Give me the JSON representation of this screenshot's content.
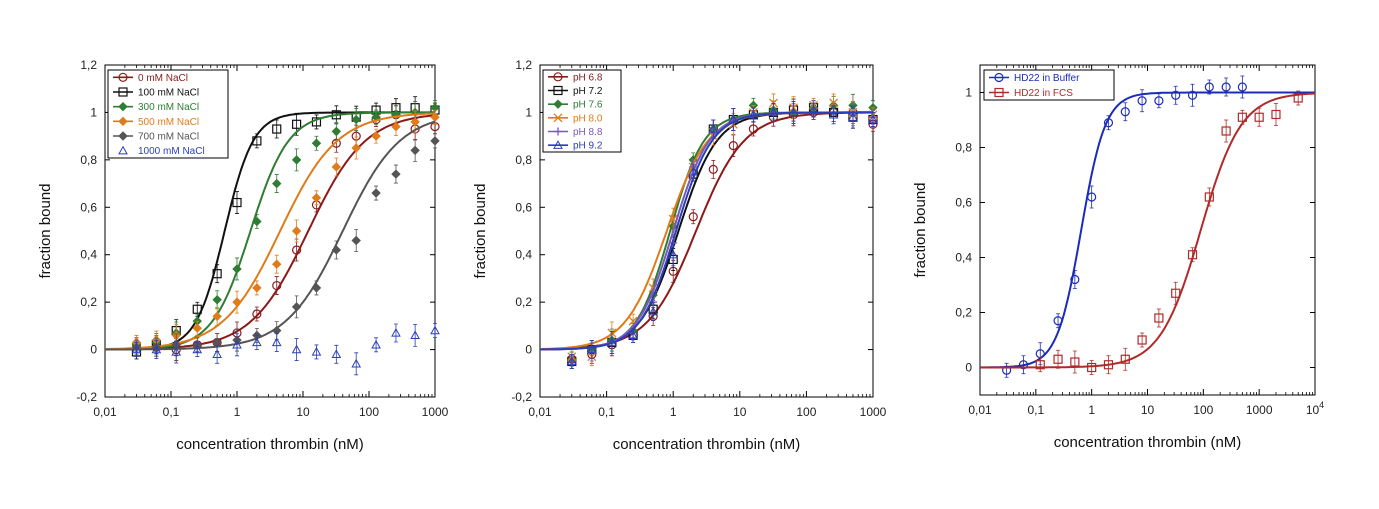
{
  "chart_data": [
    {
      "type": "scatter",
      "xlabel": "concentration thrombin (nM)",
      "ylabel": "fraction bound",
      "x_scale": "log",
      "xlim": [
        0.01,
        1000
      ],
      "ylim": [
        -0.2,
        1.2
      ],
      "x_ticks": [
        "0,01",
        "0,1",
        "1",
        "10",
        "100",
        "1000"
      ],
      "y_ticks": [
        "-0,2",
        "0",
        "0,2",
        "0,4",
        "0,6",
        "0,8",
        "1",
        "1,2"
      ],
      "legend_position": "top-left",
      "series": [
        {
          "name": "0 mM NaCl",
          "color": "#8b1a1a",
          "marker": "circle",
          "kd": 12,
          "n": 1.0,
          "x": [
            0.03,
            0.06,
            0.12,
            0.25,
            0.5,
            1,
            2,
            4,
            8,
            16,
            32,
            64,
            128,
            256,
            500,
            1000
          ],
          "y": [
            0.02,
            0.01,
            0.0,
            0.02,
            0.03,
            0.07,
            0.15,
            0.27,
            0.42,
            0.61,
            0.87,
            0.9,
            0.97,
            0.99,
            0.93,
            0.94
          ]
        },
        {
          "name": "100 mM NaCl",
          "color": "#111111",
          "marker": "square",
          "kd": 0.65,
          "n": 2.0,
          "x": [
            0.03,
            0.06,
            0.12,
            0.25,
            0.5,
            1,
            2,
            4,
            8,
            16,
            32,
            64,
            128,
            256,
            500,
            1000
          ],
          "y": [
            -0.01,
            0.02,
            0.08,
            0.17,
            0.32,
            0.62,
            0.88,
            0.93,
            0.95,
            0.96,
            0.99,
            0.98,
            1.01,
            1.02,
            1.02,
            1.01
          ]
        },
        {
          "name": "300 mM NaCl",
          "color": "#2e7d32",
          "marker": "diamond",
          "kd": 1.6,
          "n": 1.5,
          "x": [
            0.03,
            0.06,
            0.12,
            0.25,
            0.5,
            1,
            2,
            4,
            8,
            16,
            32,
            64,
            128,
            256,
            500,
            1000
          ],
          "y": [
            0.02,
            0.03,
            0.07,
            0.12,
            0.21,
            0.34,
            0.54,
            0.7,
            0.8,
            0.87,
            0.92,
            0.97,
            0.98,
            0.99,
            1.0,
            1.02
          ]
        },
        {
          "name": "500 mM NaCl",
          "color": "#e07b1a",
          "marker": "diamond",
          "kd": 4.5,
          "n": 1.0,
          "x": [
            0.03,
            0.06,
            0.12,
            0.25,
            0.5,
            1,
            2,
            4,
            8,
            16,
            32,
            64,
            128,
            256,
            500,
            1000
          ],
          "y": [
            0.03,
            0.04,
            0.06,
            0.09,
            0.14,
            0.2,
            0.26,
            0.36,
            0.5,
            0.64,
            0.77,
            0.85,
            0.9,
            0.94,
            0.96,
            0.98
          ]
        },
        {
          "name": "700 mM NaCl",
          "color": "#555555",
          "marker": "diamond",
          "kd": 40,
          "n": 1.0,
          "x": [
            0.03,
            0.06,
            0.12,
            0.25,
            0.5,
            1,
            2,
            4,
            8,
            16,
            32,
            64,
            128,
            256,
            500,
            1000
          ],
          "y": [
            0.01,
            0.01,
            0.02,
            0.02,
            0.03,
            0.04,
            0.06,
            0.08,
            0.18,
            0.26,
            0.42,
            0.46,
            0.66,
            0.74,
            0.84,
            0.88
          ]
        },
        {
          "name": "1000 mM NaCl",
          "color": "#2b3fb8",
          "marker": "triangle",
          "kd": null,
          "n": null,
          "x": [
            0.03,
            0.06,
            0.12,
            0.25,
            0.5,
            1,
            2,
            4,
            8,
            16,
            32,
            64,
            128,
            256,
            500,
            1000
          ],
          "y": [
            0.0,
            0.0,
            -0.01,
            0.0,
            -0.02,
            0.02,
            0.03,
            0.03,
            0.0,
            -0.01,
            -0.02,
            -0.06,
            0.02,
            0.07,
            0.06,
            0.08
          ]
        }
      ]
    },
    {
      "type": "scatter",
      "xlabel": "concentration thrombin (nM)",
      "ylabel": "fraction bound",
      "x_scale": "log",
      "xlim": [
        0.01,
        1000
      ],
      "ylim": [
        -0.2,
        1.2
      ],
      "x_ticks": [
        "0,01",
        "0,1",
        "1",
        "10",
        "100",
        "1000"
      ],
      "y_ticks": [
        "-0,2",
        "0",
        "0,2",
        "0,4",
        "0,6",
        "0,8",
        "1",
        "1,2"
      ],
      "legend_position": "top-left",
      "series": [
        {
          "name": "pH 6.8",
          "color": "#8b1a1a",
          "marker": "circle",
          "kd": 2.2,
          "n": 1.2,
          "x": [
            0.03,
            0.06,
            0.12,
            0.25,
            0.5,
            1,
            2,
            4,
            8,
            16,
            32,
            64,
            128,
            256,
            500,
            1000
          ],
          "y": [
            -0.04,
            -0.02,
            0.02,
            0.06,
            0.14,
            0.33,
            0.56,
            0.76,
            0.86,
            0.93,
            0.98,
            0.99,
            1.0,
            1.0,
            1.0,
            0.95
          ]
        },
        {
          "name": "pH 7.2",
          "color": "#111111",
          "marker": "square",
          "kd": 1.2,
          "n": 1.5,
          "x": [
            0.03,
            0.06,
            0.12,
            0.25,
            0.5,
            1,
            2,
            4,
            8,
            16,
            32,
            64,
            128,
            256,
            500,
            1000
          ],
          "y": [
            -0.05,
            0.0,
            0.03,
            0.06,
            0.17,
            0.38,
            0.74,
            0.93,
            0.97,
            0.99,
            1.0,
            1.01,
            1.02,
            1.0,
            0.98,
            0.97
          ]
        },
        {
          "name": "pH 7.6",
          "color": "#2e7d32",
          "marker": "diamond",
          "kd": 0.9,
          "n": 1.7,
          "x": [
            0.03,
            0.06,
            0.12,
            0.25,
            0.5,
            1,
            2,
            4,
            8,
            16,
            32,
            64,
            128,
            256,
            500,
            1000
          ],
          "y": [
            -0.04,
            0.0,
            0.04,
            0.08,
            0.23,
            0.52,
            0.8,
            0.93,
            0.97,
            1.03,
            1.01,
            1.0,
            1.02,
            1.03,
            1.03,
            1.02
          ]
        },
        {
          "name": "pH 8.0",
          "color": "#e07b1a",
          "marker": "cross",
          "kd": 0.8,
          "n": 1.4,
          "x": [
            0.03,
            0.06,
            0.12,
            0.25,
            0.5,
            1,
            2,
            4,
            8,
            16,
            32,
            64,
            128,
            256,
            500,
            1000
          ],
          "y": [
            -0.03,
            -0.03,
            0.07,
            0.12,
            0.26,
            0.55,
            0.77,
            0.9,
            0.95,
            1.0,
            1.04,
            1.02,
            1.03,
            1.04,
            1.0,
            0.99
          ]
        },
        {
          "name": "pH 8.8",
          "color": "#7a5ab8",
          "marker": "plus",
          "kd": 1.0,
          "n": 1.6,
          "x": [
            0.03,
            0.06,
            0.12,
            0.25,
            0.5,
            1,
            2,
            4,
            8,
            16,
            32,
            64,
            128,
            256,
            500,
            1000
          ],
          "y": [
            -0.05,
            -0.01,
            0.03,
            0.07,
            0.2,
            0.45,
            0.77,
            0.93,
            0.97,
            0.99,
            1.0,
            1.0,
            1.02,
            1.0,
            0.99,
            0.98
          ]
        },
        {
          "name": "pH 9.2",
          "color": "#2b3fb8",
          "marker": "triangle",
          "kd": 1.1,
          "n": 1.6,
          "x": [
            0.03,
            0.06,
            0.12,
            0.25,
            0.5,
            1,
            2,
            4,
            8,
            16,
            32,
            64,
            128,
            256,
            500,
            1000
          ],
          "y": [
            -0.05,
            0.0,
            0.03,
            0.06,
            0.16,
            0.4,
            0.75,
            0.93,
            0.97,
            0.99,
            1.0,
            1.0,
            1.01,
            0.99,
            0.98,
            0.97
          ]
        }
      ]
    },
    {
      "type": "scatter",
      "xlabel": "concentration thrombin (nM)",
      "ylabel": "fraction bound",
      "x_scale": "log",
      "xlim": [
        0.01,
        10000
      ],
      "ylim": [
        -0.1,
        1.1
      ],
      "x_ticks": [
        "0,01",
        "0,1",
        "1",
        "10",
        "100",
        "1000",
        "10^4"
      ],
      "y_ticks": [
        "0",
        "0,2",
        "0,4",
        "0,6",
        "0,8",
        "1"
      ],
      "legend_position": "top-left",
      "series": [
        {
          "name": "HD22 in Buffer",
          "color": "#1c2bb8",
          "marker": "circle",
          "kd": 0.65,
          "n": 2.0,
          "x": [
            0.03,
            0.06,
            0.12,
            0.25,
            0.5,
            1,
            2,
            4,
            8,
            16,
            32,
            64,
            128,
            256,
            500
          ],
          "y": [
            -0.01,
            0.01,
            0.05,
            0.17,
            0.32,
            0.62,
            0.89,
            0.93,
            0.97,
            0.97,
            0.99,
            0.99,
            1.02,
            1.02,
            1.02
          ]
        },
        {
          "name": "HD22 in FCS",
          "color": "#b02a2a",
          "marker": "square",
          "kd": 90,
          "n": 1.2,
          "x": [
            0.12,
            0.25,
            0.5,
            1,
            2,
            4,
            8,
            16,
            32,
            64,
            128,
            256,
            500,
            1000,
            2000,
            5000
          ],
          "y": [
            0.01,
            0.03,
            0.02,
            0.0,
            0.01,
            0.03,
            0.1,
            0.18,
            0.27,
            0.41,
            0.62,
            0.86,
            0.91,
            0.91,
            0.92,
            0.98
          ]
        }
      ]
    }
  ]
}
